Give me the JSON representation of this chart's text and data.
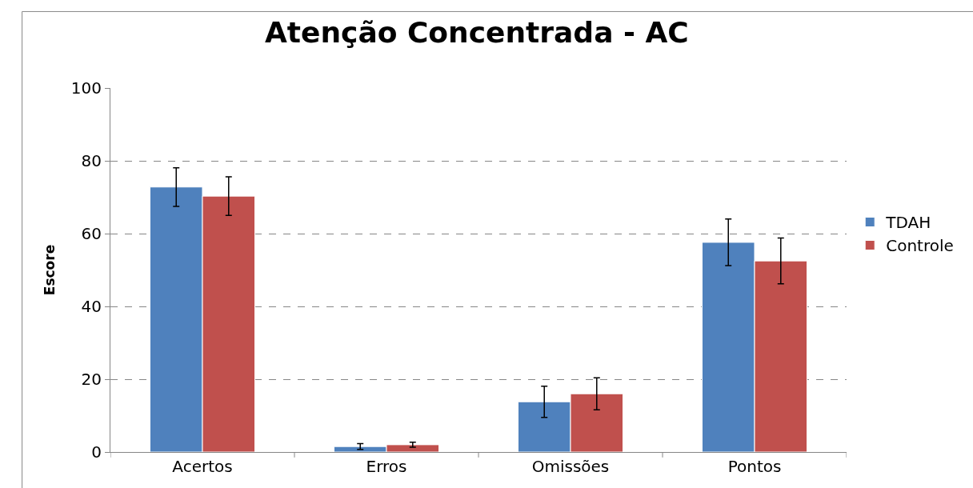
{
  "chart_data": {
    "type": "bar",
    "title": "Atenção Concentrada - AC",
    "ylabel": "Escore",
    "categories": [
      "Acertos",
      "Erros",
      "Omissões",
      "Pontos"
    ],
    "series": [
      {
        "name": "TDAH",
        "color": "#4f81bd",
        "values": [
          72.8,
          1.5,
          13.8,
          57.6
        ],
        "errors": [
          5.3,
          0.8,
          4.3,
          6.4
        ]
      },
      {
        "name": "Controle",
        "color": "#c0504d",
        "values": [
          70.3,
          2.0,
          16.0,
          52.5
        ],
        "errors": [
          5.3,
          0.7,
          4.4,
          6.3
        ]
      }
    ],
    "ylim": [
      0,
      100
    ],
    "yticks": [
      0,
      20,
      40,
      60,
      80,
      100
    ],
    "grid": "y",
    "legend": "right"
  }
}
